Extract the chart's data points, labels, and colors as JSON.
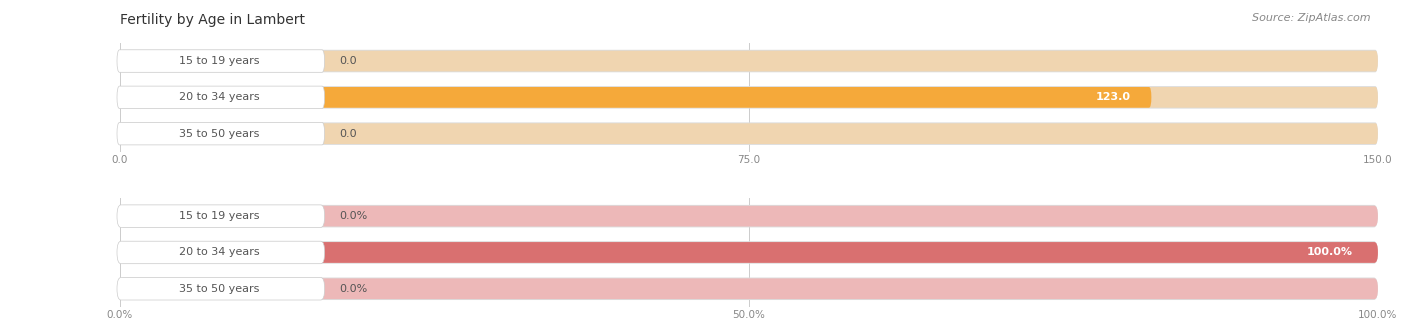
{
  "title": "Fertility by Age in Lambert",
  "source_text": "Source: ZipAtlas.com",
  "top_chart": {
    "categories": [
      "15 to 19 years",
      "20 to 34 years",
      "35 to 50 years"
    ],
    "values": [
      0.0,
      123.0,
      0.0
    ],
    "max_val": 150.0,
    "tick_vals": [
      0.0,
      75.0,
      150.0
    ],
    "tick_labels": [
      "0.0",
      "75.0",
      "150.0"
    ],
    "bar_color": "#F5A93A",
    "bg_bar_color": "#F0D5B0",
    "outer_bg_color": "#E8E8E8",
    "label_text_color": "#555555"
  },
  "bottom_chart": {
    "categories": [
      "15 to 19 years",
      "20 to 34 years",
      "35 to 50 years"
    ],
    "values": [
      0.0,
      100.0,
      0.0
    ],
    "max_val": 100.0,
    "tick_vals": [
      0.0,
      50.0,
      100.0
    ],
    "tick_labels": [
      "0.0%",
      "50.0%",
      "100.0%"
    ],
    "bar_color": "#D97070",
    "bg_bar_color": "#EDB8B8",
    "outer_bg_color": "#E8E8E8",
    "label_text_color": "#555555"
  },
  "title_fontsize": 10,
  "source_fontsize": 8,
  "label_fontsize": 8,
  "value_fontsize": 8,
  "tick_fontsize": 7.5,
  "bg_color": "#FFFFFF",
  "outer_bar_color": "#DCDCDC",
  "bar_height": 0.62,
  "bar_gap": 1.0
}
